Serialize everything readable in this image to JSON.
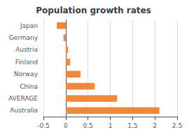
{
  "chart_data": {
    "type": "bar",
    "orientation": "horizontal",
    "title": "Population growth rates",
    "categories": [
      "Australia",
      "AVERAGE",
      "China",
      "Norway",
      "Finland",
      "Austria",
      "Germany",
      "Japan"
    ],
    "values": [
      2.1,
      1.15,
      0.65,
      0.33,
      0.1,
      0.05,
      -0.05,
      -0.2
    ],
    "color": "#f0883a",
    "xlim": [
      -0.5,
      2.5
    ],
    "xticks": [
      -0.5,
      0,
      0.5,
      1,
      1.5,
      2,
      2.5
    ],
    "grid": true
  }
}
